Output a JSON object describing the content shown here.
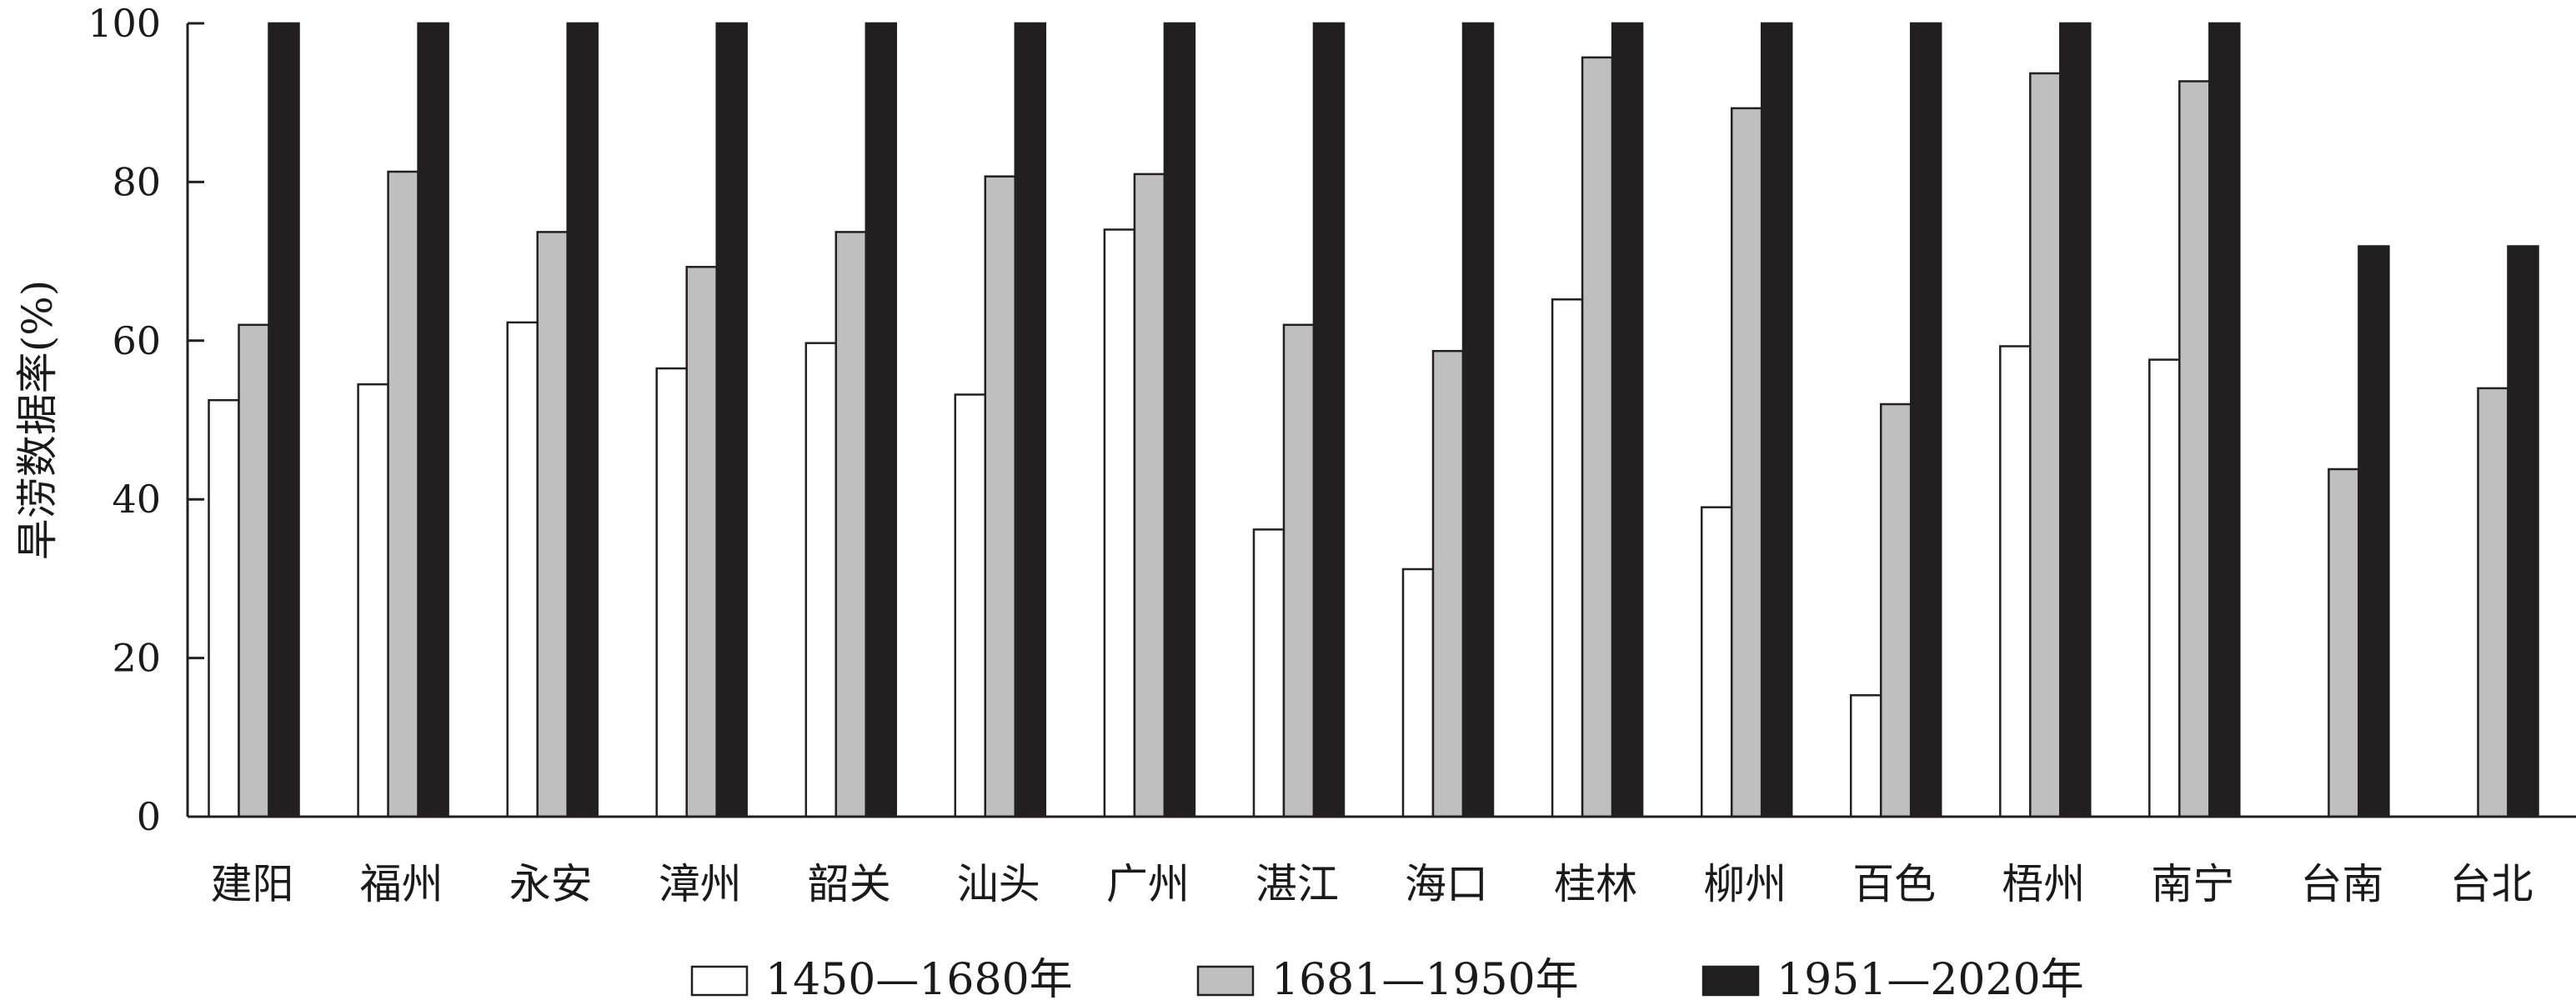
{
  "chart_data": {
    "type": "bar",
    "ylabel": "旱涝数据率(%)",
    "xlabel": "",
    "ylim": [
      0,
      100
    ],
    "yticks": [
      0,
      20,
      40,
      60,
      80,
      100
    ],
    "grid": false,
    "legend_position": "bottom",
    "categories": [
      "建阳",
      "福州",
      "永安",
      "漳州",
      "韶关",
      "汕头",
      "广州",
      "湛江",
      "海口",
      "桂林",
      "柳州",
      "百色",
      "梧州",
      "南宁",
      "台南",
      "台北"
    ],
    "series": [
      {
        "name": "1450—1680年",
        "color": "#ffffff",
        "values": [
          52.5,
          54.5,
          62.3,
          56.5,
          59.7,
          53.2,
          74.0,
          36.2,
          31.2,
          65.2,
          39.0,
          15.3,
          59.3,
          57.6,
          null,
          null
        ]
      },
      {
        "name": "1681—1950年",
        "color": "#bfbfbf",
        "values": [
          62.0,
          81.3,
          73.7,
          69.3,
          73.7,
          80.7,
          81.0,
          62.0,
          58.7,
          95.7,
          89.3,
          52.0,
          93.7,
          92.7,
          43.8,
          54.0
        ]
      },
      {
        "name": "1951—2020年",
        "color": "#231f20",
        "values": [
          100,
          100,
          100,
          100,
          100,
          100,
          100,
          100,
          100,
          100,
          100,
          100,
          100,
          100,
          71.9,
          71.9
        ]
      }
    ]
  }
}
